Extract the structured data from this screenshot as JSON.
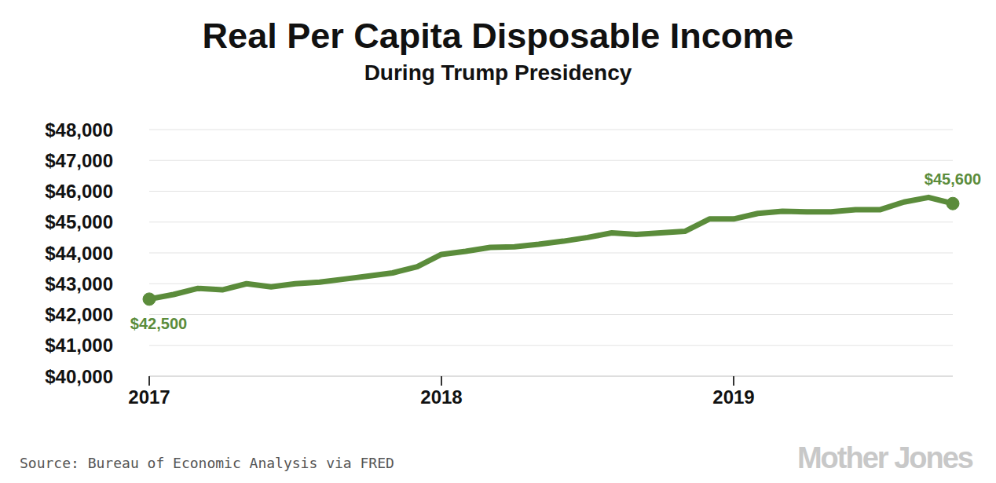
{
  "chart_data": {
    "type": "line",
    "title": "Real Per Capita Disposable Income",
    "subtitle": "During Trump Presidency",
    "x": [
      2017,
      2017.083,
      2017.167,
      2017.25,
      2017.333,
      2017.417,
      2017.5,
      2017.583,
      2017.667,
      2017.75,
      2017.833,
      2017.917,
      2018,
      2018.083,
      2018.167,
      2018.25,
      2018.333,
      2018.417,
      2018.5,
      2018.583,
      2018.667,
      2018.75,
      2018.833,
      2018.917,
      2019,
      2019.083,
      2019.167,
      2019.25,
      2019.333,
      2019.417,
      2019.5,
      2019.583,
      2019.667,
      2019.75
    ],
    "values": [
      42500,
      42650,
      42850,
      42800,
      43000,
      42900,
      43000,
      43050,
      43150,
      43250,
      43350,
      43550,
      43950,
      44050,
      44180,
      44200,
      44280,
      44380,
      44500,
      44650,
      44600,
      44650,
      44700,
      45100,
      45100,
      45280,
      45350,
      45330,
      45330,
      45400,
      45400,
      45650,
      45800,
      45600
    ],
    "color": "#5b8c3b",
    "xlim": [
      2017,
      2019.75
    ],
    "xticks": [
      2017,
      2018,
      2019
    ],
    "ylim": [
      40000,
      48000
    ],
    "yticks": [
      {
        "value": 40000,
        "label": "$40,000"
      },
      {
        "value": 41000,
        "label": "$41,000"
      },
      {
        "value": 42000,
        "label": "$42,000"
      },
      {
        "value": 43000,
        "label": "$43,000"
      },
      {
        "value": 44000,
        "label": "$44,000"
      },
      {
        "value": 45000,
        "label": "$45,000"
      },
      {
        "value": 46000,
        "label": "$46,000"
      },
      {
        "value": 47000,
        "label": "$47,000"
      },
      {
        "value": 48000,
        "label": "$48,000"
      }
    ],
    "grid": true,
    "annotations": [
      {
        "x": 2017,
        "y": 42500,
        "text": "$42,500"
      },
      {
        "x": 2019.75,
        "y": 45600,
        "text": "$45,600"
      }
    ],
    "source": "Source: Bureau of Economic Analysis via FRED",
    "credit": "Mother Jones"
  }
}
